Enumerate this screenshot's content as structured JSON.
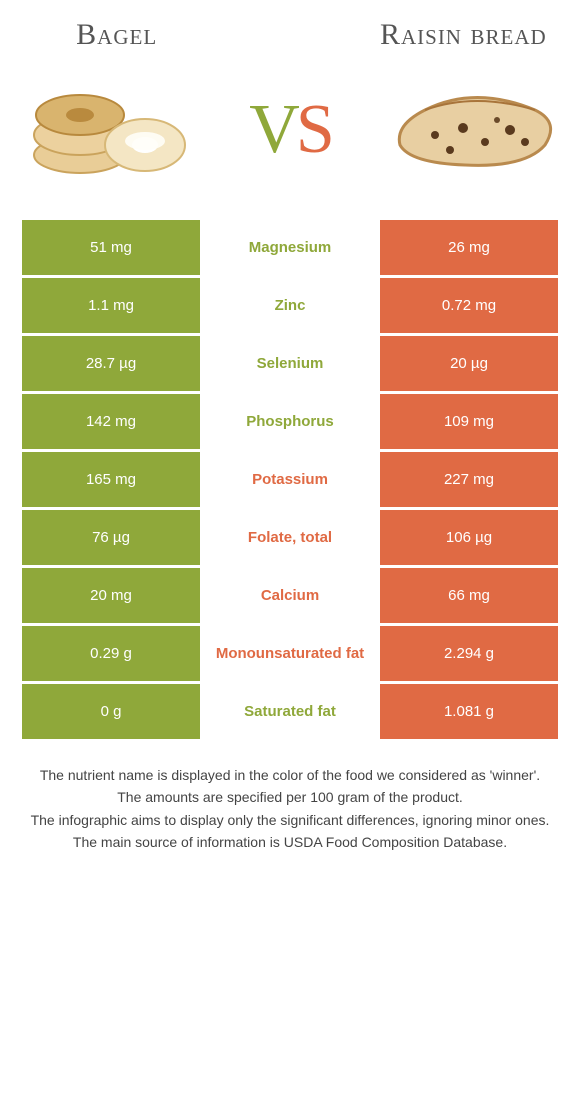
{
  "header": {
    "left_title": "Bagel",
    "right_title": "Raisin bread",
    "vs_v": "V",
    "vs_s": "S"
  },
  "colors": {
    "left": "#8fa83a",
    "right": "#e06a44",
    "row_gap": "#ffffff"
  },
  "typography": {
    "title_fontsize": 30,
    "vs_fontsize": 70,
    "cell_fontsize": 15,
    "footnote_fontsize": 14
  },
  "table": {
    "rows": [
      {
        "left": "51 mg",
        "label": "Magnesium",
        "right": "26 mg",
        "winner": "left"
      },
      {
        "left": "1.1 mg",
        "label": "Zinc",
        "right": "0.72 mg",
        "winner": "left"
      },
      {
        "left": "28.7 µg",
        "label": "Selenium",
        "right": "20 µg",
        "winner": "left"
      },
      {
        "left": "142 mg",
        "label": "Phosphorus",
        "right": "109 mg",
        "winner": "left"
      },
      {
        "left": "165 mg",
        "label": "Potassium",
        "right": "227 mg",
        "winner": "right"
      },
      {
        "left": "76 µg",
        "label": "Folate, total",
        "right": "106 µg",
        "winner": "right"
      },
      {
        "left": "20 mg",
        "label": "Calcium",
        "right": "66 mg",
        "winner": "right"
      },
      {
        "left": "0.29 g",
        "label": "Monounsaturated fat",
        "right": "2.294 g",
        "winner": "right"
      },
      {
        "left": "0 g",
        "label": "Saturated fat",
        "right": "1.081 g",
        "winner": "left"
      }
    ]
  },
  "footnotes": [
    "The nutrient name is displayed in the color of the food we considered as 'winner'.",
    "The amounts are specified per 100 gram of the product.",
    "The infographic aims to display only the significant differences, ignoring minor ones.",
    "The main source of information is USDA Food Composition Database."
  ],
  "icons": {
    "left": "bagel-icon",
    "right": "raisin-bread-icon"
  }
}
